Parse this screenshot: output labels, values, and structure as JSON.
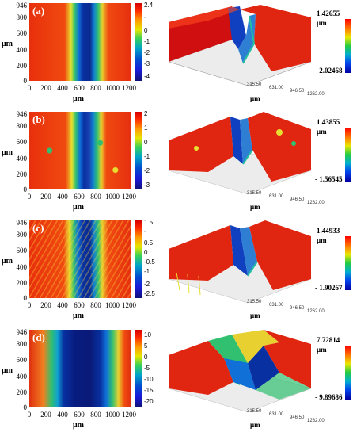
{
  "panels": [
    {
      "label": "(a)",
      "map": {
        "y_ticks": [
          "946",
          "800",
          "600",
          "400",
          "200",
          "0"
        ],
        "x_ticks": [
          "0",
          "200",
          "400",
          "600",
          "800",
          "1000",
          "1200"
        ],
        "x_unit": "μm",
        "y_unit": "μm",
        "colorbar_ticks": [
          "2.4",
          "1",
          "0",
          "-1",
          "-2",
          "-3",
          "-4"
        ]
      },
      "view3d": {
        "axis_ticks": [
          "315.50",
          "631.00",
          "946.50",
          "1262.00"
        ],
        "x_unit": "μm",
        "max_value": "1.42655",
        "unit": "μm",
        "min_value": "- 2.02468"
      }
    },
    {
      "label": "(b)",
      "map": {
        "y_ticks": [
          "946",
          "800",
          "600",
          "400",
          "200",
          "0"
        ],
        "x_ticks": [
          "0",
          "200",
          "400",
          "600",
          "800",
          "1000",
          "1200"
        ],
        "x_unit": "μm",
        "y_unit": "μm",
        "colorbar_ticks": [
          "2",
          "1",
          "0",
          "-1",
          "-2",
          "-3"
        ]
      },
      "view3d": {
        "axis_ticks": [
          "315.50",
          "631.00",
          "946.50",
          "1262.00"
        ],
        "x_unit": "μm",
        "max_value": "1.43855",
        "unit": "μm",
        "min_value": "- 1.56545"
      }
    },
    {
      "label": "(c)",
      "map": {
        "y_ticks": [
          "946",
          "800",
          "600",
          "400",
          "200",
          "0"
        ],
        "x_ticks": [
          "0",
          "200",
          "400",
          "600",
          "800",
          "1000",
          "1200"
        ],
        "x_unit": "μm",
        "y_unit": "μm",
        "colorbar_ticks": [
          "1.5",
          "1",
          "0.5",
          "0",
          "-0.5",
          "-1",
          "-2",
          "-2.5"
        ]
      },
      "view3d": {
        "axis_ticks": [
          "315.50",
          "631.00",
          "946.50",
          "1262.00"
        ],
        "x_unit": "μm",
        "max_value": "1.44933",
        "unit": "μm",
        "min_value": "- 1.90267"
      }
    },
    {
      "label": "(d)",
      "map": {
        "y_ticks": [
          "946",
          "800",
          "600",
          "400",
          "200",
          "0"
        ],
        "x_ticks": [
          "0",
          "200",
          "400",
          "600",
          "800",
          "1000",
          "1200"
        ],
        "x_unit": "μm",
        "y_unit": "μm",
        "colorbar_ticks": [
          "10",
          "5",
          "0",
          "-5",
          "-10",
          "-15",
          "-20"
        ]
      },
      "view3d": {
        "axis_ticks": [
          "315.50",
          "631.00",
          "946.50",
          "1262.00"
        ],
        "x_unit": "μm",
        "max_value": "7.72814",
        "unit": "μm",
        "min_value": "- 9.89686"
      }
    }
  ]
}
